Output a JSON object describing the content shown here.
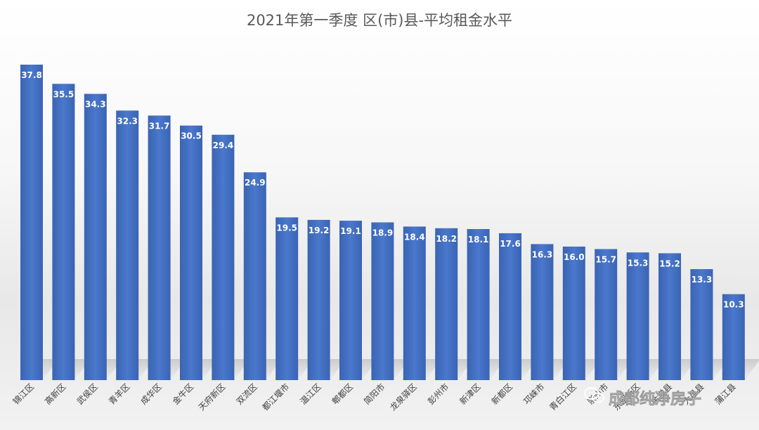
{
  "chart_data": {
    "type": "bar",
    "title": "2021年第一季度 区(市)县-平均租金水平",
    "xlabel": "",
    "ylabel": "",
    "ylim": [
      0,
      40
    ],
    "grid": false,
    "legend": "none",
    "categories": [
      "锦江区",
      "高新区",
      "武侯区",
      "青羊区",
      "成华区",
      "金牛区",
      "天府新区",
      "双流区",
      "都江堰市",
      "温江区",
      "郫都区",
      "简阳市",
      "龙泉驿区",
      "彭州市",
      "新津区",
      "新都区",
      "邛崃市",
      "青白江区",
      "崇州市",
      "东部新区",
      "金堂县",
      "大邑县",
      "蒲江县"
    ],
    "values": [
      37.8,
      35.5,
      34.3,
      32.3,
      31.7,
      30.5,
      29.4,
      24.9,
      19.5,
      19.2,
      19.1,
      18.9,
      18.4,
      18.2,
      18.1,
      17.6,
      16.3,
      16.0,
      15.7,
      15.3,
      15.2,
      13.3,
      10.3
    ],
    "value_labels": [
      "37.8",
      "35.5",
      "34.3",
      "32.3",
      "31.7",
      "30.5",
      "29.4",
      "24.9",
      "19.5",
      "19.2",
      "19.1",
      "18.9",
      "18.4",
      "18.2",
      "18.1",
      "17.6",
      "16.3",
      "16.0",
      "15.7",
      "15.3",
      "15.2",
      "13.3",
      "10.3"
    ],
    "bar_color": "#4472c4"
  },
  "watermark": {
    "text": "成都纯净房子",
    "icon": "wechat-icon"
  }
}
